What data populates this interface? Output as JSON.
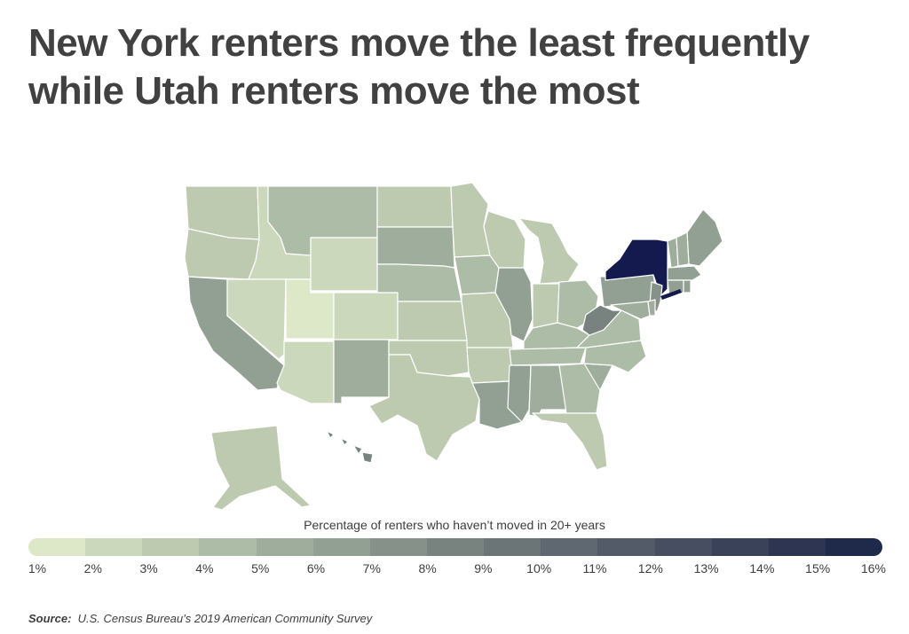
{
  "title_lines": [
    "New York renters move the least frequently",
    "while Utah renters move the most"
  ],
  "legend": {
    "title": "Percentage of renters who haven’t moved in 20+ years",
    "ticks": [
      "1%",
      "2%",
      "3%",
      "4%",
      "5%",
      "6%",
      "7%",
      "8%",
      "9%",
      "10%",
      "11%",
      "12%",
      "13%",
      "14%",
      "15%",
      "16%"
    ],
    "colors": [
      "#dde8c8",
      "#ccd8bb",
      "#bdcab0",
      "#adbca6",
      "#9fae9c",
      "#92a093",
      "#859189",
      "#788380",
      "#6b7578",
      "#5f6770",
      "#535a68",
      "#474e61",
      "#3a4259",
      "#2d3552",
      "#1f294a"
    ]
  },
  "source": {
    "label": "Source:",
    "text": "U.S. Census Bureau’s 2019 American Community Survey"
  },
  "map_data": {
    "scale": "Percentage of renters who haven’t moved in 20+ years",
    "states": [
      {
        "id": "WA",
        "value": 3
      },
      {
        "id": "OR",
        "value": 3
      },
      {
        "id": "CA",
        "value": 6
      },
      {
        "id": "ID",
        "value": 2
      },
      {
        "id": "NV",
        "value": 2
      },
      {
        "id": "UT",
        "value": 1
      },
      {
        "id": "AZ",
        "value": 2
      },
      {
        "id": "MT",
        "value": 4
      },
      {
        "id": "WY",
        "value": 2
      },
      {
        "id": "CO",
        "value": 2
      },
      {
        "id": "NM",
        "value": 5
      },
      {
        "id": "ND",
        "value": 3
      },
      {
        "id": "SD",
        "value": 5
      },
      {
        "id": "NE",
        "value": 4
      },
      {
        "id": "KS",
        "value": 3
      },
      {
        "id": "OK",
        "value": 3
      },
      {
        "id": "TX",
        "value": 3
      },
      {
        "id": "MN",
        "value": 3
      },
      {
        "id": "IA",
        "value": 4
      },
      {
        "id": "MO",
        "value": 3
      },
      {
        "id": "AR",
        "value": 3
      },
      {
        "id": "LA",
        "value": 6
      },
      {
        "id": "WI",
        "value": 3
      },
      {
        "id": "IL",
        "value": 6
      },
      {
        "id": "MI",
        "value": 3
      },
      {
        "id": "IN",
        "value": 3
      },
      {
        "id": "OH",
        "value": 4
      },
      {
        "id": "KY",
        "value": 4
      },
      {
        "id": "TN",
        "value": 4
      },
      {
        "id": "MS",
        "value": 6
      },
      {
        "id": "AL",
        "value": 5
      },
      {
        "id": "GA",
        "value": 4
      },
      {
        "id": "FL",
        "value": 3
      },
      {
        "id": "SC",
        "value": 5
      },
      {
        "id": "NC",
        "value": 4
      },
      {
        "id": "VA",
        "value": 4
      },
      {
        "id": "WV",
        "value": 8
      },
      {
        "id": "PA",
        "value": 6
      },
      {
        "id": "NY",
        "value": 16
      },
      {
        "id": "NJ",
        "value": 7
      },
      {
        "id": "MD",
        "value": 5
      },
      {
        "id": "DE",
        "value": 5
      },
      {
        "id": "ME",
        "value": 6
      },
      {
        "id": "VT",
        "value": 5
      },
      {
        "id": "NH",
        "value": 5
      },
      {
        "id": "MA",
        "value": 6
      },
      {
        "id": "CT",
        "value": 6
      },
      {
        "id": "RI",
        "value": 6
      },
      {
        "id": "AK",
        "value": 3
      },
      {
        "id": "HI",
        "value": 8
      }
    ]
  }
}
